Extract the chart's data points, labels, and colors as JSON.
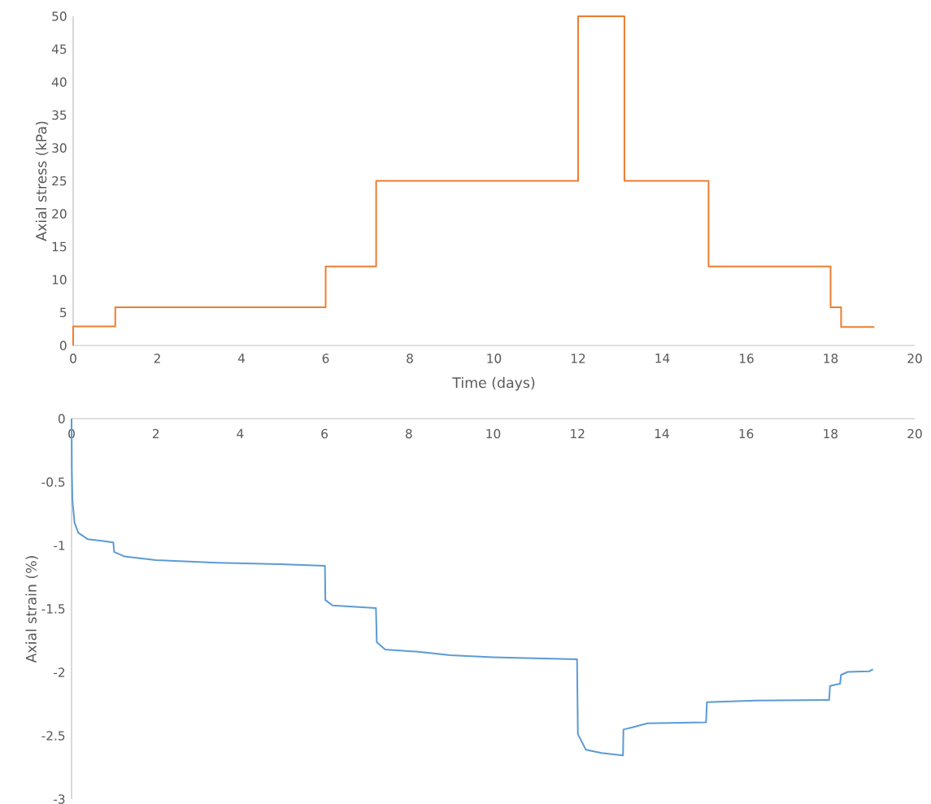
{
  "chart_data": [
    {
      "type": "step",
      "xlabel": "Time (days)",
      "ylabel": "Axial stress (kPa)",
      "color": "#ed7d31",
      "x": [
        0,
        0,
        1.0,
        6.0,
        7.2,
        12.0,
        13.1,
        15.1,
        18.0,
        18.25,
        19.04
      ],
      "values": [
        0,
        2.9,
        5.8,
        12,
        25,
        50,
        25,
        12,
        5.8,
        2.8,
        2.8
      ],
      "xlim": [
        0,
        20
      ],
      "xticks": [
        0,
        2,
        4,
        6,
        8,
        10,
        12,
        14,
        16,
        18,
        20
      ],
      "ylim": [
        0,
        50
      ],
      "yticks": [
        0,
        5,
        10,
        15,
        20,
        25,
        30,
        35,
        40,
        45,
        50
      ]
    },
    {
      "type": "line",
      "ylabel": "Axial strain (%)",
      "color": "#5b9bd5",
      "x": [
        0,
        0.007,
        0.02,
        0.07,
        0.16,
        0.38,
        0.75,
        0.99,
        1.01,
        1.26,
        2.0,
        3.47,
        4.94,
        6.01,
        6.02,
        6.19,
        7.22,
        7.24,
        7.44,
        8.18,
        8.99,
        10,
        11.99,
        12.01,
        12.2,
        12.57,
        13.08,
        13.09,
        13.3,
        13.66,
        15.05,
        15.07,
        16.22,
        17.97,
        17.99,
        18.23,
        18.25,
        18.41,
        18.92,
        19.01
      ],
      "values": [
        0,
        -0.4,
        -0.64,
        -0.82,
        -0.9,
        -0.95,
        -0.965,
        -0.976,
        -1.05,
        -1.087,
        -1.116,
        -1.136,
        -1.148,
        -1.16,
        -1.43,
        -1.473,
        -1.493,
        -1.763,
        -1.82,
        -1.837,
        -1.866,
        -1.881,
        -1.898,
        -2.488,
        -2.611,
        -2.636,
        -2.655,
        -2.451,
        -2.434,
        -2.402,
        -2.395,
        -2.235,
        -2.223,
        -2.218,
        -2.107,
        -2.09,
        -2.021,
        -1.997,
        -1.992,
        -1.977
      ],
      "xlim": [
        0,
        20
      ],
      "xticks": [
        0,
        2,
        4,
        6,
        8,
        10,
        12,
        14,
        16,
        18,
        20
      ],
      "ylim": [
        -3,
        0
      ],
      "yticks": [
        0,
        -0.5,
        -1,
        -1.5,
        -2,
        -2.5,
        -3
      ]
    }
  ]
}
